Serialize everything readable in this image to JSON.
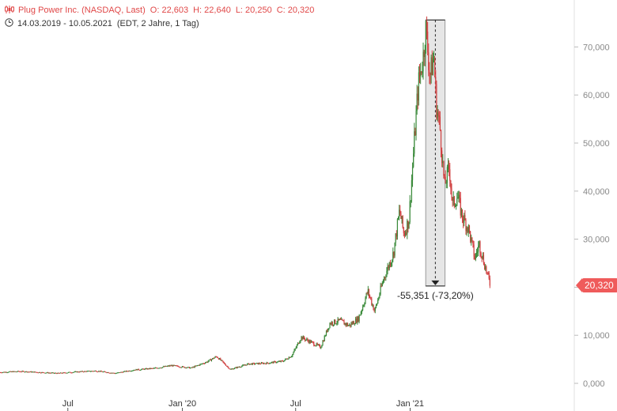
{
  "header": {
    "instrument": "Plug Power Inc. (NASDAQ, Last)",
    "open": "O: 22,603",
    "high": "H: 22,640",
    "low": "L: 20,250",
    "close": "C: 20,320",
    "date_range": "14.03.2019 - 10.05.2021",
    "info": "(EDT, 2 Jahre, 1 Tag)"
  },
  "icons": {
    "chart": "candlestick-icon",
    "clock": "clock-icon"
  },
  "colors": {
    "up": "#3a8a3a",
    "down": "#d04040",
    "badge": "#ef5b5b",
    "measure": "#dcdcdc"
  },
  "chart_data": {
    "type": "candlestick",
    "y_axis": {
      "min": 0,
      "max": 75,
      "ticks": [
        0,
        10,
        20,
        30,
        40,
        50,
        60,
        70
      ],
      "tick_labels": [
        "0,000",
        "10,000",
        "20,000",
        "30,000",
        "40,000",
        "50,000",
        "60,000",
        "70,000"
      ]
    },
    "x_axis": {
      "start": "2019-03-14",
      "end": "2021-05-10",
      "ticks": [
        {
          "date": "2019-07-01",
          "label": "Jul"
        },
        {
          "date": "2020-01-01",
          "label": "Jan '20"
        },
        {
          "date": "2020-07-01",
          "label": "Jul"
        },
        {
          "date": "2021-01-01",
          "label": "Jan '21"
        }
      ]
    },
    "series": [
      {
        "values": [
          [
            "2019-03-14",
            2.3
          ],
          [
            "2019-04-15",
            2.5
          ],
          [
            "2019-05-15",
            2.3
          ],
          [
            "2019-06-15",
            2.1
          ],
          [
            "2019-07-15",
            2.4
          ],
          [
            "2019-08-15",
            2.6
          ],
          [
            "2019-09-15",
            2.1
          ],
          [
            "2019-10-15",
            2.8
          ],
          [
            "2019-11-15",
            3.1
          ],
          [
            "2019-12-15",
            3.7
          ],
          [
            "2020-01-15",
            3.2
          ],
          [
            "2020-02-10",
            4.5
          ],
          [
            "2020-02-25",
            5.6
          ],
          [
            "2020-03-18",
            2.9
          ],
          [
            "2020-04-15",
            4.0
          ],
          [
            "2020-05-15",
            4.2
          ],
          [
            "2020-06-10",
            4.6
          ],
          [
            "2020-06-25",
            5.8
          ],
          [
            "2020-07-10",
            9.6
          ],
          [
            "2020-07-25",
            8.6
          ],
          [
            "2020-08-10",
            7.5
          ],
          [
            "2020-08-25",
            12.5
          ],
          [
            "2020-09-10",
            13.0
          ],
          [
            "2020-09-25",
            12.0
          ],
          [
            "2020-10-10",
            13.5
          ],
          [
            "2020-10-25",
            19.2
          ],
          [
            "2020-11-05",
            15.0
          ],
          [
            "2020-11-20",
            22.0
          ],
          [
            "2020-12-05",
            27.0
          ],
          [
            "2020-12-15",
            36.0
          ],
          [
            "2020-12-22",
            31.0
          ],
          [
            "2020-12-30",
            34.0
          ],
          [
            "2021-01-08",
            51.0
          ],
          [
            "2021-01-14",
            62.0
          ],
          [
            "2021-01-22",
            68.0
          ],
          [
            "2021-01-26",
            74.0
          ],
          [
            "2021-02-02",
            64.0
          ],
          [
            "2021-02-08",
            68.0
          ],
          [
            "2021-02-12",
            58.0
          ],
          [
            "2021-02-18",
            53.0
          ],
          [
            "2021-02-25",
            41.0
          ],
          [
            "2021-03-05",
            45.0
          ],
          [
            "2021-03-10",
            37.0
          ],
          [
            "2021-03-18",
            39.0
          ],
          [
            "2021-03-25",
            35.0
          ],
          [
            "2021-04-05",
            32.0
          ],
          [
            "2021-04-15",
            26.0
          ],
          [
            "2021-04-22",
            29.0
          ],
          [
            "2021-04-30",
            25.0
          ],
          [
            "2021-05-10",
            20.32
          ]
        ]
      }
    ],
    "last_value": "20,320",
    "annotation": {
      "text": "-55,351 (-73,20%)",
      "from_date": "2021-01-26",
      "to_date": "2021-02-26",
      "from_value": 75.61,
      "to_value": 20.26
    }
  }
}
